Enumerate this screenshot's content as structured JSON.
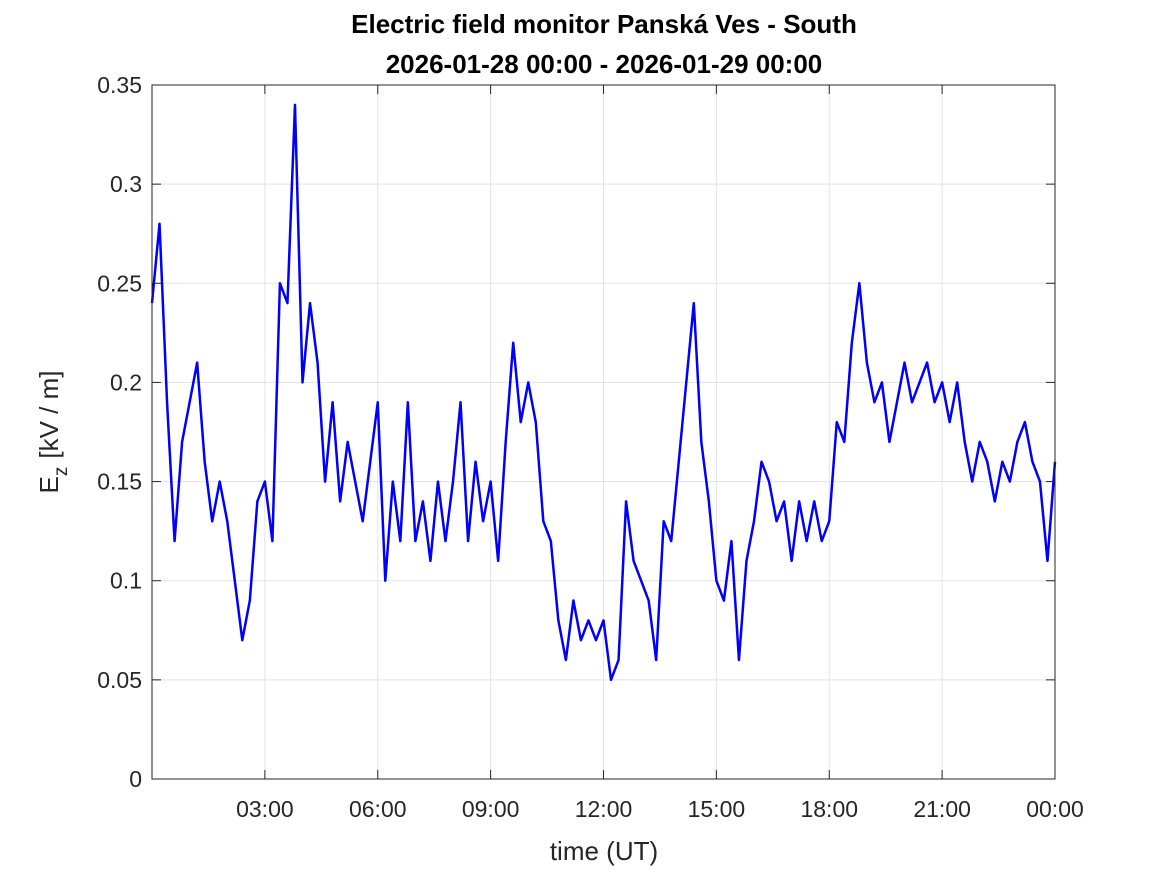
{
  "chart_data": {
    "type": "line",
    "title": "Electric field monitor Panská Ves - South",
    "subtitle": "2026-01-28 00:00 - 2026-01-29 00:00",
    "xlabel": "time (UT)",
    "ylabel": {
      "main": "E",
      "subscript": "z",
      "unit": "[kV / m]"
    },
    "color": "#0000ff",
    "grid": true,
    "xlim": [
      0,
      24
    ],
    "ylim": [
      0,
      0.35
    ],
    "xticks": [
      {
        "value": 3,
        "label": "03:00"
      },
      {
        "value": 6,
        "label": "06:00"
      },
      {
        "value": 9,
        "label": "09:00"
      },
      {
        "value": 12,
        "label": "12:00"
      },
      {
        "value": 15,
        "label": "15:00"
      },
      {
        "value": 18,
        "label": "18:00"
      },
      {
        "value": 21,
        "label": "21:00"
      },
      {
        "value": 24,
        "label": "00:00"
      }
    ],
    "yticks": [
      0,
      0.05,
      0.1,
      0.15,
      0.2,
      0.25,
      0.3,
      0.35
    ],
    "x": [
      0,
      0.2,
      0.4,
      0.6,
      0.8,
      1,
      1.2,
      1.4,
      1.6,
      1.8,
      2,
      2.2,
      2.4,
      2.6,
      2.8,
      3,
      3.2,
      3.4,
      3.6,
      3.8,
      4,
      4.2,
      4.4,
      4.6,
      4.8,
      5,
      5.2,
      5.4,
      5.6,
      5.8,
      6,
      6.2,
      6.4,
      6.6,
      6.8,
      7,
      7.2,
      7.4,
      7.6,
      7.8,
      8,
      8.2,
      8.4,
      8.6,
      8.8,
      9,
      9.2,
      9.4,
      9.6,
      9.8,
      10,
      10.2,
      10.4,
      10.6,
      10.8,
      11,
      11.2,
      11.4,
      11.6,
      11.8,
      12,
      12.2,
      12.4,
      12.6,
      12.8,
      13,
      13.2,
      13.4,
      13.6,
      13.8,
      14,
      14.2,
      14.4,
      14.6,
      14.8,
      15,
      15.2,
      15.4,
      15.6,
      15.8,
      16,
      16.2,
      16.4,
      16.6,
      16.8,
      17,
      17.2,
      17.4,
      17.6,
      17.8,
      18,
      18.2,
      18.4,
      18.6,
      18.8,
      19,
      19.2,
      19.4,
      19.6,
      19.8,
      20,
      20.2,
      20.4,
      20.6,
      20.8,
      21,
      21.2,
      21.4,
      21.6,
      21.8,
      22,
      22.2,
      22.4,
      22.6,
      22.8,
      23,
      23.2,
      23.4,
      23.6,
      23.8,
      24
    ],
    "values": [
      0.24,
      0.28,
      0.19,
      0.12,
      0.17,
      0.19,
      0.21,
      0.16,
      0.13,
      0.15,
      0.13,
      0.1,
      0.07,
      0.09,
      0.14,
      0.15,
      0.12,
      0.25,
      0.24,
      0.34,
      0.2,
      0.24,
      0.21,
      0.15,
      0.19,
      0.14,
      0.17,
      0.15,
      0.13,
      0.16,
      0.19,
      0.1,
      0.15,
      0.12,
      0.19,
      0.12,
      0.14,
      0.11,
      0.15,
      0.12,
      0.15,
      0.19,
      0.12,
      0.16,
      0.13,
      0.15,
      0.11,
      0.17,
      0.22,
      0.18,
      0.2,
      0.18,
      0.13,
      0.12,
      0.08,
      0.06,
      0.09,
      0.07,
      0.08,
      0.07,
      0.08,
      0.05,
      0.06,
      0.14,
      0.11,
      0.1,
      0.09,
      0.06,
      0.13,
      0.12,
      0.16,
      0.2,
      0.24,
      0.17,
      0.14,
      0.1,
      0.09,
      0.12,
      0.06,
      0.11,
      0.13,
      0.16,
      0.15,
      0.13,
      0.14,
      0.11,
      0.14,
      0.12,
      0.14,
      0.12,
      0.13,
      0.18,
      0.17,
      0.22,
      0.25,
      0.21,
      0.19,
      0.2,
      0.17,
      0.19,
      0.21,
      0.19,
      0.2,
      0.21,
      0.19,
      0.2,
      0.18,
      0.2,
      0.17,
      0.15,
      0.17,
      0.16,
      0.14,
      0.16,
      0.15,
      0.17,
      0.18,
      0.16,
      0.15,
      0.11,
      0.16
    ]
  }
}
